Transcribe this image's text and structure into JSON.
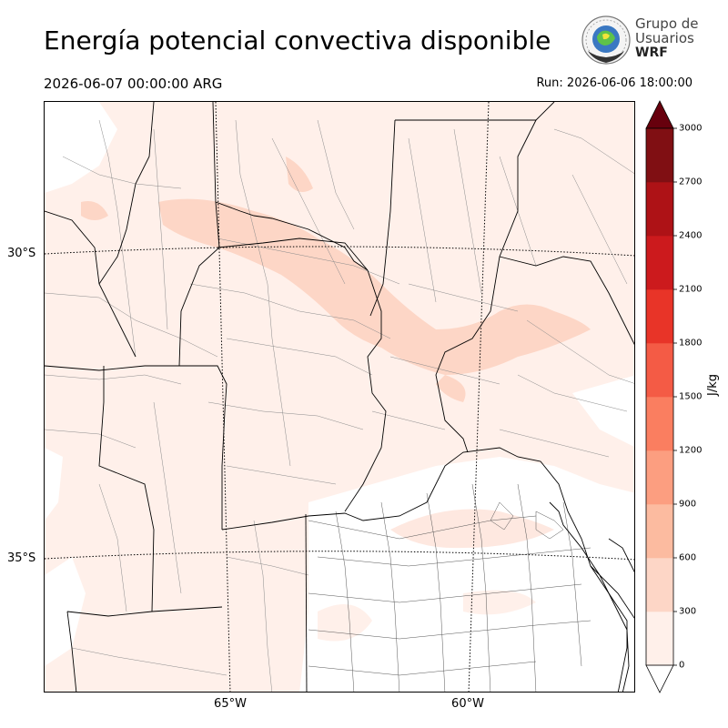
{
  "header": {
    "title": "Energía potencial convectiva disponible",
    "valid_time": "2026-06-07 00:00:00 ARG",
    "run_time": "Run: 2026-06-06 18:00:00"
  },
  "logo": {
    "line1": "Grupo de",
    "line2": "Usuarios",
    "line3": "WRF"
  },
  "map": {
    "lat_labels": [
      "30°S",
      "35°S"
    ],
    "lon_labels": [
      "65°W",
      "60°W"
    ]
  },
  "colorbar": {
    "unit": "J/kg",
    "ticks": [
      "0",
      "300",
      "600",
      "900",
      "1200",
      "1500",
      "1800",
      "2100",
      "2400",
      "2700",
      "3000"
    ],
    "colors": [
      "#fff0ea",
      "#fdd6c6",
      "#fcbba0",
      "#fc9e80",
      "#fa7e60",
      "#f45b45",
      "#e83428",
      "#cc1a1d",
      "#ae1216",
      "#800f13"
    ],
    "extend_color": "#67000d"
  }
}
